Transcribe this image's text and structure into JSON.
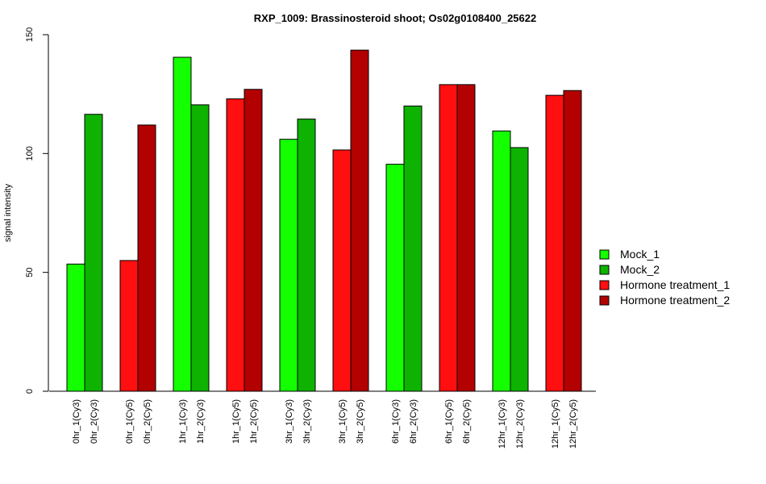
{
  "chart_data": {
    "type": "bar",
    "title": "RXP_1009: Brassinosteroid shoot; Os02g0108400_25622",
    "xlabel": "",
    "ylabel": "signal intensity",
    "ylim": [
      0,
      150
    ],
    "yticks": [
      0,
      50,
      100,
      150
    ],
    "bars": [
      {
        "label": "0hr_1(Cy3)",
        "value": 53.5,
        "series": "Mock_1"
      },
      {
        "label": "0hr_2(Cy3)",
        "value": 116.5,
        "series": "Mock_2"
      },
      {
        "label": "0hr_1(Cy5)",
        "value": 55.0,
        "series": "Hormone treatment_1"
      },
      {
        "label": "0hr_2(Cy5)",
        "value": 112.0,
        "series": "Hormone treatment_2"
      },
      {
        "label": "1hr_1(Cy3)",
        "value": 140.5,
        "series": "Mock_1"
      },
      {
        "label": "1hr_2(Cy3)",
        "value": 120.5,
        "series": "Mock_2"
      },
      {
        "label": "1hr_1(Cy5)",
        "value": 123.0,
        "series": "Hormone treatment_1"
      },
      {
        "label": "1hr_2(Cy5)",
        "value": 127.0,
        "series": "Hormone treatment_2"
      },
      {
        "label": "3hr_1(Cy3)",
        "value": 106.0,
        "series": "Mock_1"
      },
      {
        "label": "3hr_2(Cy3)",
        "value": 114.5,
        "series": "Mock_2"
      },
      {
        "label": "3hr_1(Cy5)",
        "value": 101.5,
        "series": "Hormone treatment_1"
      },
      {
        "label": "3hr_2(Cy5)",
        "value": 143.5,
        "series": "Hormone treatment_2"
      },
      {
        "label": "6hr_1(Cy3)",
        "value": 95.5,
        "series": "Mock_1"
      },
      {
        "label": "6hr_2(Cy3)",
        "value": 120.0,
        "series": "Mock_2"
      },
      {
        "label": "6hr_1(Cy5)",
        "value": 129.0,
        "series": "Hormone treatment_1"
      },
      {
        "label": "6hr_2(Cy5)",
        "value": 129.0,
        "series": "Hormone treatment_2"
      },
      {
        "label": "12hr_1(Cy3)",
        "value": 109.5,
        "series": "Mock_1"
      },
      {
        "label": "12hr_2(Cy3)",
        "value": 102.5,
        "series": "Mock_2"
      },
      {
        "label": "12hr_1(Cy5)",
        "value": 124.5,
        "series": "Hormone treatment_1"
      },
      {
        "label": "12hr_2(Cy5)",
        "value": 126.5,
        "series": "Hormone treatment_2"
      }
    ],
    "legend": {
      "placement": "right",
      "entries": [
        {
          "name": "Mock_1",
          "color": "#14ff00"
        },
        {
          "name": "Mock_2",
          "color": "#0db300"
        },
        {
          "name": "Hormone treatment_1",
          "color": "#ff0f0f"
        },
        {
          "name": "Hormone treatment_2",
          "color": "#b30000"
        }
      ]
    },
    "grid": false
  }
}
